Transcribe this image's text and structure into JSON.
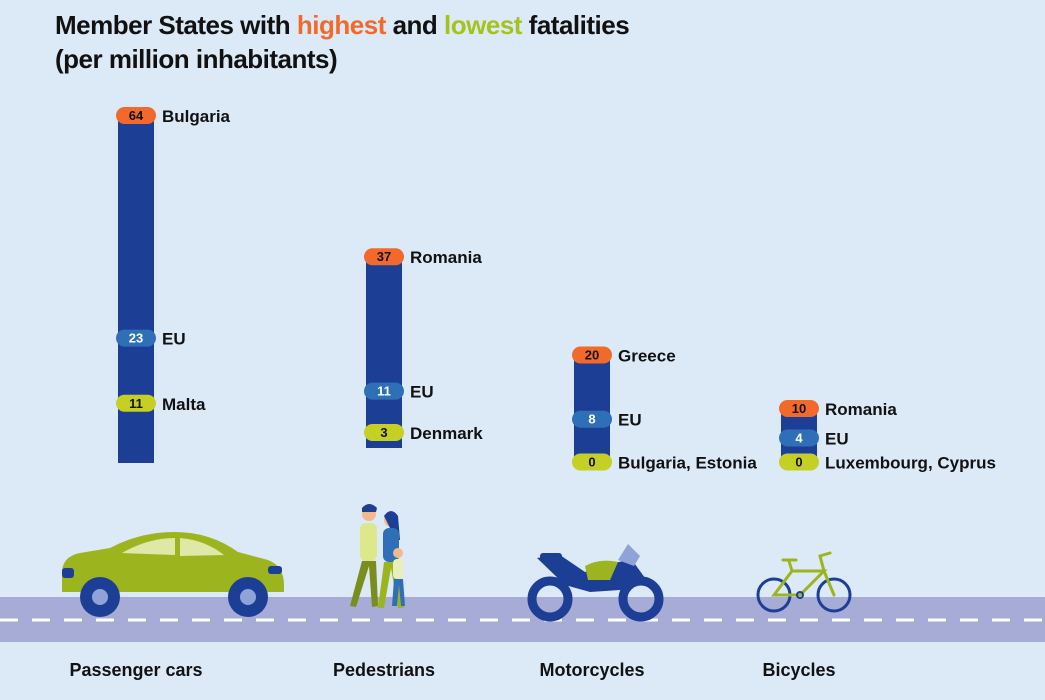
{
  "title": {
    "part1": "Member States with ",
    "highest": "highest",
    "part2": " and ",
    "lowest": "lowest",
    "part3": " fatalities",
    "line2": "(per million inhabitants)"
  },
  "colors": {
    "background": "#dce9f7",
    "bar": "#1c3f95",
    "highest": "#f26a2b",
    "eu": "#2f6fb8",
    "lowest": "#c5cf24",
    "road": "#a6acd6",
    "title_highest": "#f26a2b",
    "title_lowest": "#a6c21c"
  },
  "chart_data": {
    "type": "bar",
    "unit": "per million inhabitants",
    "categories": [
      "Passenger cars",
      "Pedestrians",
      "Motorcycles",
      "Bicycles"
    ],
    "series": [
      {
        "name": "highest",
        "values": [
          64,
          37,
          20,
          10
        ],
        "labels": [
          "Bulgaria",
          "Romania",
          "Greece",
          "Romania"
        ]
      },
      {
        "name": "EU",
        "values": [
          23,
          11,
          8,
          4
        ],
        "labels": [
          "EU",
          "EU",
          "EU",
          "EU"
        ]
      },
      {
        "name": "lowest",
        "values": [
          11,
          3,
          0,
          0
        ],
        "labels": [
          "Malta",
          "Denmark",
          "Bulgaria, Estonia",
          "Luxembourg, Cyprus"
        ]
      }
    ],
    "icons": [
      "car-icon",
      "pedestrians-icon",
      "motorcycle-icon",
      "bicycle-icon"
    ]
  }
}
